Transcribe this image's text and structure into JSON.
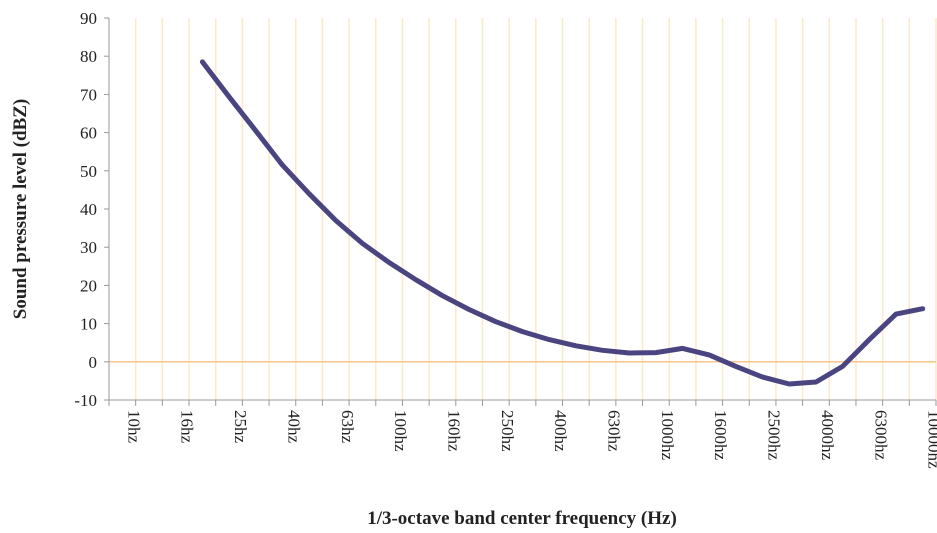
{
  "chart_data": {
    "type": "line",
    "x_label": "1/3-octave band center frequency (Hz)",
    "y_label": "Sound pressure level (dBZ)",
    "categories": [
      "10hz",
      null,
      "16hz",
      null,
      "25hz",
      null,
      "40hz",
      null,
      "63hz",
      null,
      "100hz",
      null,
      "160hz",
      null,
      "250hz",
      null,
      "400hz",
      null,
      "630hz",
      null,
      "1000hz",
      null,
      "1600hz",
      null,
      "2500hz",
      null,
      "4000hz",
      null,
      "6300hz",
      null,
      "10000hz"
    ],
    "series": [
      {
        "name": "Sound pressure level",
        "color": "#4a4580",
        "values": [
          null,
          null,
          null,
          78.5,
          69.4,
          60.5,
          51.5,
          44,
          37,
          31,
          26,
          21.5,
          17.3,
          13.7,
          10.5,
          7.9,
          5.8,
          4.2,
          3,
          2.3,
          2.4,
          3.5,
          1.8,
          -1.2,
          -4,
          -5.8,
          -5.3,
          -1.2,
          5.8,
          12.5,
          13.9
        ]
      }
    ],
    "ylim": [
      -10,
      90
    ],
    "yticks": [
      -10,
      0,
      10,
      20,
      30,
      40,
      50,
      60,
      70,
      80,
      90
    ],
    "grid": true,
    "grid_color": "#fde9c8",
    "zero_line_color": "#f5c68a"
  }
}
